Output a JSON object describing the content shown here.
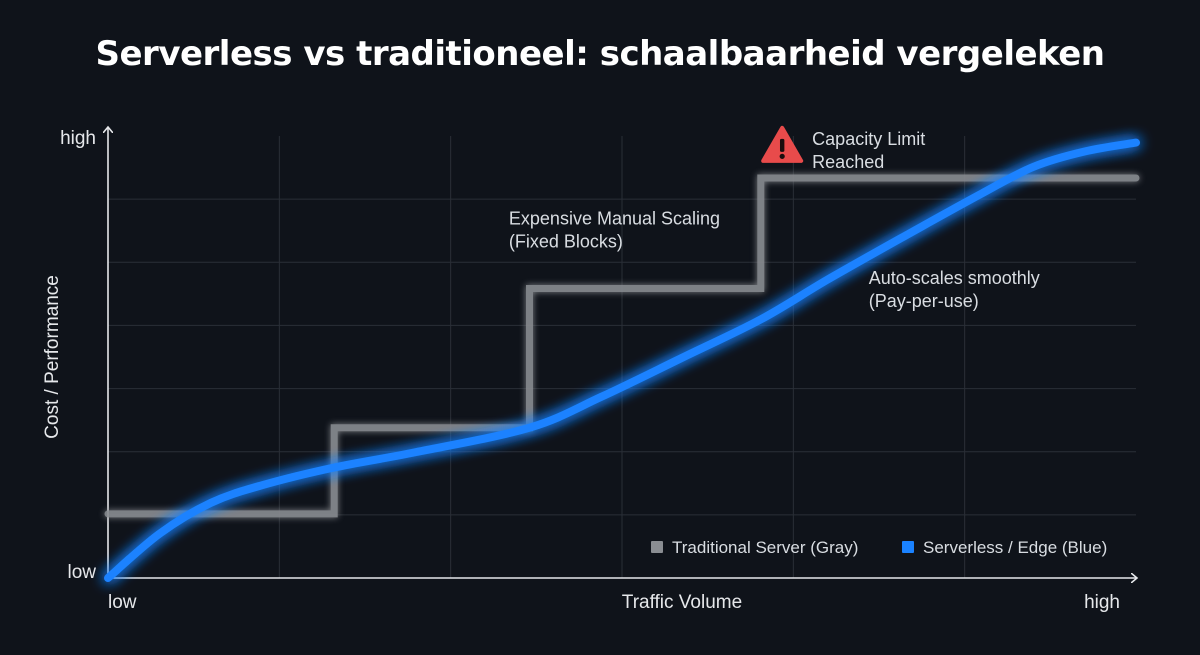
{
  "colors": {
    "background": "#0f131a",
    "traditional": "#8a8d92",
    "serverless": "#1a82ff",
    "warning": "#e84b4b"
  },
  "chart_data": {
    "type": "line",
    "title": "Serverless vs traditioneel: schaalbaarheid vergeleken",
    "xlabel": "Traffic Volume",
    "ylabel": "Cost / Performance",
    "x_ticks": [
      "low",
      "high"
    ],
    "y_ticks": [
      "low",
      "high"
    ],
    "xlim": [
      0,
      1
    ],
    "ylim": [
      0,
      1
    ],
    "grid": true,
    "legend_position": "bottom-right",
    "series": [
      {
        "name": "Traditional Server (Gray)",
        "color": "#8a8d92",
        "shape": "step",
        "x": [
          0,
          0.22,
          0.22,
          0.41,
          0.41,
          0.635,
          0.635,
          1.0
        ],
        "y": [
          0.145,
          0.145,
          0.34,
          0.34,
          0.655,
          0.655,
          0.905,
          0.905
        ]
      },
      {
        "name": "Serverless / Edge (Blue)",
        "color": "#1a82ff",
        "shape": "smooth",
        "x": [
          0,
          0.05,
          0.1,
          0.15,
          0.22,
          0.3,
          0.41,
          0.48,
          0.56,
          0.635,
          0.7,
          0.78,
          0.85,
          0.9,
          0.95,
          1.0
        ],
        "y": [
          0.0,
          0.1,
          0.17,
          0.21,
          0.25,
          0.285,
          0.34,
          0.41,
          0.5,
          0.585,
          0.675,
          0.78,
          0.87,
          0.93,
          0.965,
          0.985
        ]
      }
    ],
    "annotations": [
      {
        "lines": [
          "Capacity Limit",
          "Reached"
        ],
        "x": 0.685,
        "y": 0.98,
        "icon": "warning-icon"
      },
      {
        "lines": [
          "Expensive Manual Scaling",
          "(Fixed Blocks)"
        ],
        "x": 0.39,
        "y": 0.8
      },
      {
        "lines": [
          "Auto-scales smoothly",
          "(Pay-per-use)"
        ],
        "x": 0.74,
        "y": 0.665
      }
    ]
  }
}
